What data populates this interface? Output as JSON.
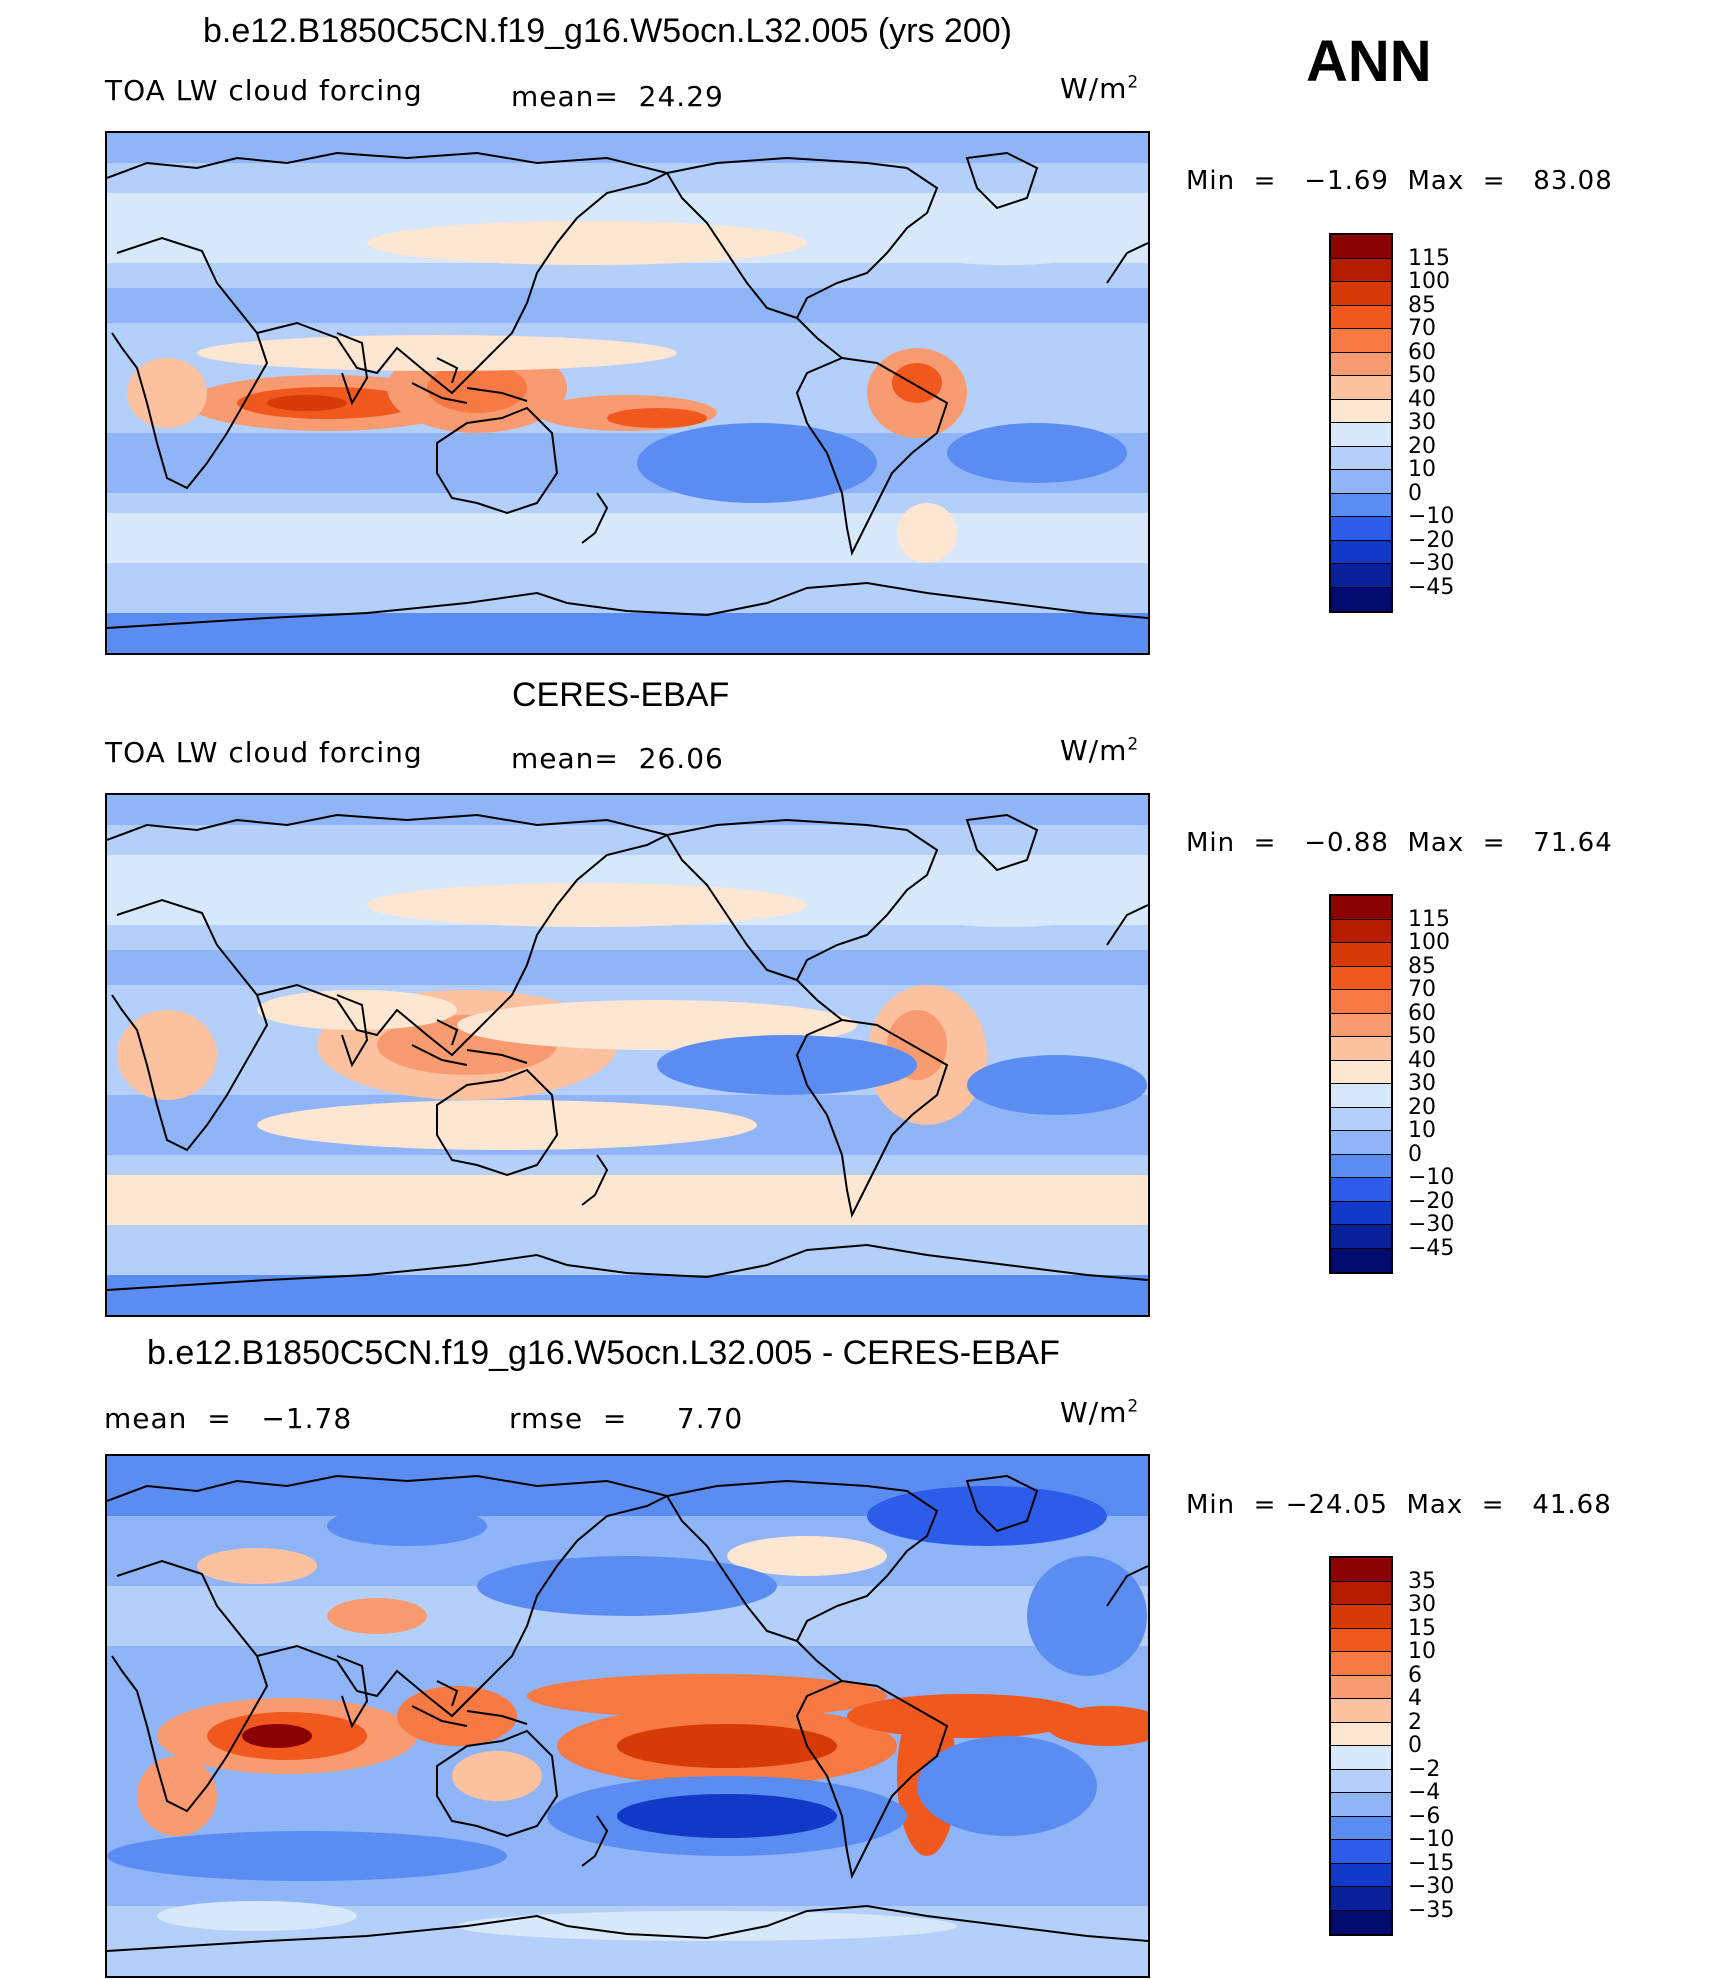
{
  "season": "ANN",
  "panels": [
    {
      "title": "b.e12.B1850C5CN.f19_g16.W5ocn.L32.005 (yrs 200)",
      "left_label": "TOA LW cloud forcing",
      "center_label": "mean=  24.29",
      "units": "W/m",
      "units_exp": "2",
      "minmax": "Min  =   −1.69  Max  =   83.08",
      "colorbar": {
        "labels": [
          "115",
          "100",
          "85",
          "70",
          "60",
          "50",
          "40",
          "30",
          "20",
          "10",
          "0",
          "−10",
          "−20",
          "−30",
          "−45"
        ],
        "colors": [
          "#8b0000",
          "#b51c00",
          "#d63a06",
          "#f0581e",
          "#f77a44",
          "#f99b70",
          "#fcc2a0",
          "#fde6d2",
          "#d8e8fb",
          "#b4d0fa",
          "#8fb4f7",
          "#5a8cf2",
          "#2d5cea",
          "#1238c8",
          "#08209a",
          "#030a70"
        ]
      },
      "map_style": "model"
    },
    {
      "title": "CERES-EBAF",
      "left_label": "TOA LW cloud forcing",
      "center_label": "mean=  26.06",
      "units": "W/m",
      "units_exp": "2",
      "minmax": "Min  =   −0.88  Max  =   71.64",
      "colorbar": {
        "labels": [
          "115",
          "100",
          "85",
          "70",
          "60",
          "50",
          "40",
          "30",
          "20",
          "10",
          "0",
          "−10",
          "−20",
          "−30",
          "−45"
        ],
        "colors": [
          "#8b0000",
          "#b51c00",
          "#d63a06",
          "#f0581e",
          "#f77a44",
          "#f99b70",
          "#fcc2a0",
          "#fde6d2",
          "#d8e8fb",
          "#b4d0fa",
          "#8fb4f7",
          "#5a8cf2",
          "#2d5cea",
          "#1238c8",
          "#08209a",
          "#030a70"
        ]
      },
      "map_style": "obs"
    },
    {
      "title": "b.e12.B1850C5CN.f19_g16.W5ocn.L32.005 - CERES-EBAF",
      "left_label": "mean  =   −1.78",
      "center_label": "rmse  =     7.70",
      "units": "W/m",
      "units_exp": "2",
      "minmax": "Min  = −24.05  Max  =   41.68",
      "colorbar": {
        "labels": [
          "35",
          "30",
          "15",
          "10",
          "6",
          "4",
          "2",
          "0",
          "−2",
          "−4",
          "−6",
          "−10",
          "−15",
          "−30",
          "−35"
        ],
        "colors": [
          "#8b0000",
          "#b51c00",
          "#d63a06",
          "#f0581e",
          "#f77a44",
          "#f99b70",
          "#fcc2a0",
          "#fde6d2",
          "#d8e8fb",
          "#b4d0fa",
          "#8fb4f7",
          "#5a8cf2",
          "#2d5cea",
          "#1238c8",
          "#08209a",
          "#030a70"
        ]
      },
      "map_style": "diff"
    }
  ]
}
